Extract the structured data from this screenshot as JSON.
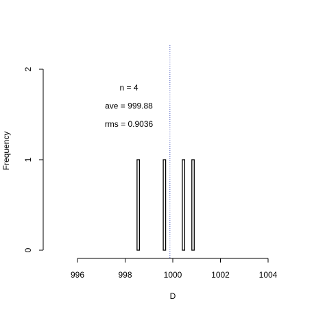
{
  "chart_data": {
    "type": "histogram",
    "x_label": "D",
    "y_label": "Frequency",
    "bins": [
      998.5,
      998.6,
      998.7,
      998.8,
      998.9,
      999.0,
      999.1,
      999.2,
      999.3,
      999.4,
      999.5,
      999.6,
      999.7,
      999.8,
      999.9,
      1000.0,
      1000.1,
      1000.2,
      1000.3,
      1000.4,
      1000.5,
      1000.6,
      1000.7,
      1000.8,
      1000.9
    ],
    "values": [
      1,
      0,
      0,
      0,
      0,
      0,
      0,
      0,
      0,
      0,
      0,
      1,
      0,
      0,
      0,
      0,
      0,
      0,
      0,
      1,
      0,
      0,
      0,
      1
    ],
    "color": "#ffffff",
    "edge_color": "#000000",
    "mean_line": 999.88,
    "mean_line_color": "#4a5bbf",
    "annotations": [
      "n = 4",
      "ave = 999.88",
      "rms = 0.9036"
    ],
    "xlim": [
      996,
      1004
    ],
    "xticks": [
      996,
      998,
      1000,
      1002,
      1004
    ],
    "ylim": [
      0,
      2
    ],
    "yticks": [
      0,
      1,
      2
    ]
  }
}
